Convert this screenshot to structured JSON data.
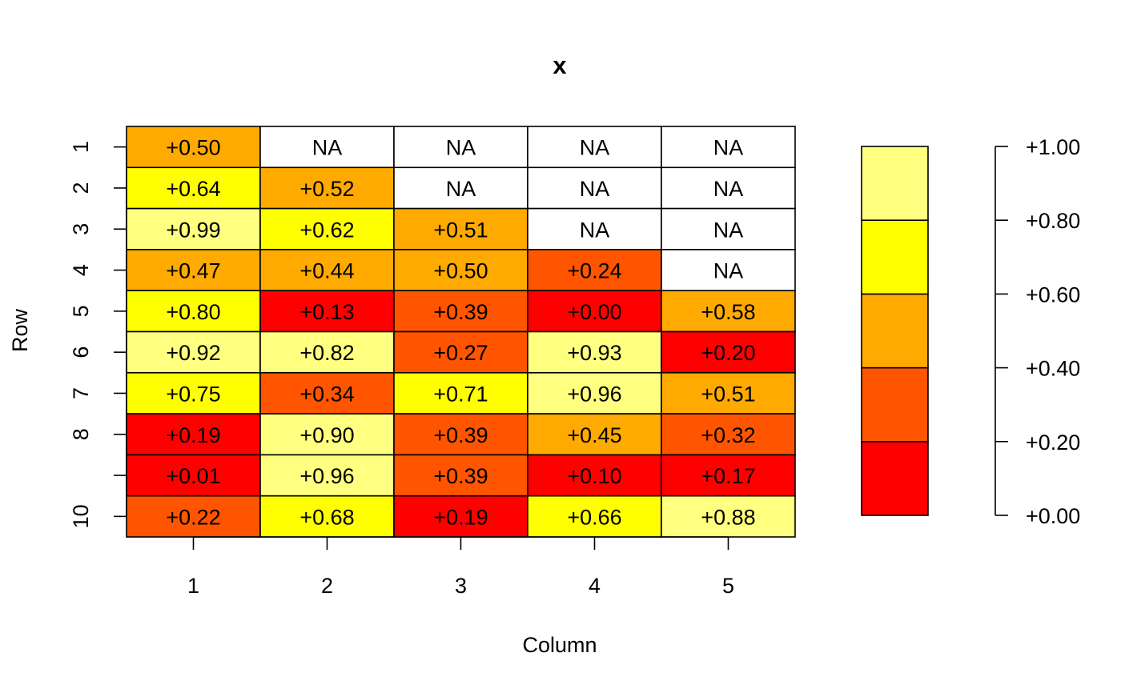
{
  "chart_data": {
    "type": "heatmap",
    "title": "x",
    "xlabel": "Column",
    "ylabel": "Row",
    "x_ticks": [
      "1",
      "2",
      "3",
      "4",
      "5"
    ],
    "y_ticks": [
      "1",
      "2",
      "3",
      "4",
      "5",
      "6",
      "7",
      "8",
      "",
      "10"
    ],
    "na_label": "NA",
    "cells": [
      [
        "+0.50",
        "NA",
        "NA",
        "NA",
        "NA"
      ],
      [
        "+0.64",
        "+0.52",
        "NA",
        "NA",
        "NA"
      ],
      [
        "+0.99",
        "+0.62",
        "+0.51",
        "NA",
        "NA"
      ],
      [
        "+0.47",
        "+0.44",
        "+0.50",
        "+0.24",
        "NA"
      ],
      [
        "+0.80",
        "+0.13",
        "+0.39",
        "+0.00",
        "+0.58"
      ],
      [
        "+0.92",
        "+0.82",
        "+0.27",
        "+0.93",
        "+0.20"
      ],
      [
        "+0.75",
        "+0.34",
        "+0.71",
        "+0.96",
        "+0.51"
      ],
      [
        "+0.19",
        "+0.90",
        "+0.39",
        "+0.45",
        "+0.32"
      ],
      [
        "+0.01",
        "+0.96",
        "+0.39",
        "+0.10",
        "+0.17"
      ],
      [
        "+0.22",
        "+0.68",
        "+0.19",
        "+0.66",
        "+0.88"
      ]
    ],
    "color_range": [
      0,
      1
    ],
    "color_breaks": [
      0,
      0.2,
      0.4,
      0.6,
      0.8,
      1.0
    ],
    "colors": [
      "#ff0000",
      "#ff5500",
      "#ffaa00",
      "#ffff00",
      "#ffff80"
    ],
    "na_color": "#ffffff",
    "legend_ticks": [
      "+0.00",
      "+0.20",
      "+0.40",
      "+0.60",
      "+0.80",
      "+1.00"
    ],
    "legend_placement": "right",
    "grid": false
  }
}
